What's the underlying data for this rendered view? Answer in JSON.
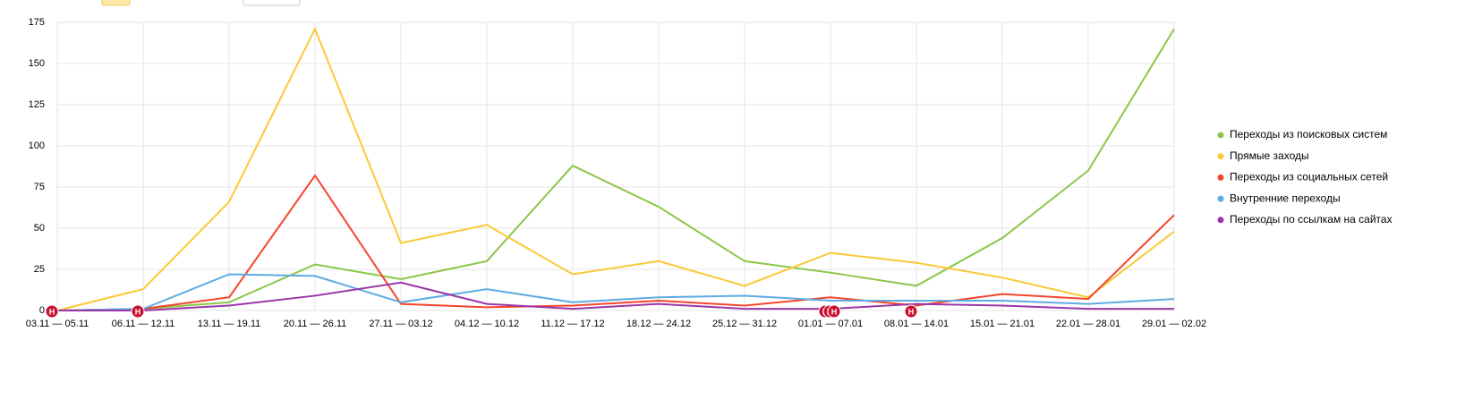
{
  "chart_data": {
    "type": "line",
    "categories": [
      "03.11 — 05.11",
      "06.11 — 12.11",
      "13.11 — 19.11",
      "20.11 — 26.11",
      "27.11 — 03.12",
      "04.12 — 10.12",
      "11.12 — 17.12",
      "18.12 — 24.12",
      "25.12 — 31.12",
      "01.01 — 07.01",
      "08.01 — 14.01",
      "15.01 — 21.01",
      "22.01 — 28.01",
      "29.01 — 02.02"
    ],
    "series": [
      {
        "name": "Переходы из поисковых систем",
        "color": "#8cc548",
        "values": [
          0,
          1,
          5,
          28,
          19,
          30,
          88,
          63,
          30,
          23,
          15,
          44,
          85,
          171
        ]
      },
      {
        "name": "Прямые заходы",
        "color": "#fcc836",
        "values": [
          0,
          13,
          66,
          171,
          41,
          52,
          22,
          30,
          15,
          35,
          29,
          20,
          8,
          48
        ]
      },
      {
        "name": "Переходы из социальных сетей",
        "color": "#f5452c",
        "values": [
          0,
          1,
          8,
          82,
          4,
          2,
          3,
          6,
          3,
          8,
          3,
          10,
          7,
          58
        ]
      },
      {
        "name": "Внутренние переходы",
        "color": "#5eabe3",
        "values": [
          0,
          1,
          22,
          21,
          5,
          13,
          5,
          8,
          9,
          6,
          6,
          6,
          4,
          7
        ]
      },
      {
        "name": "Переходы по ссылкам на сайтах",
        "color": "#9b36a8",
        "values": [
          0,
          0,
          3,
          9,
          17,
          4,
          1,
          4,
          1,
          1,
          4,
          3,
          1,
          1
        ]
      }
    ],
    "ylim": [
      0,
      175
    ],
    "yticks": [
      0,
      25,
      50,
      75,
      100,
      125,
      150,
      175
    ],
    "grid": true,
    "legend": "right",
    "annotations": [
      {
        "x": "03.11 — 05.11",
        "label": "Н"
      },
      {
        "x": "06.11 — 12.11",
        "label": "Н"
      },
      {
        "x": "01.01 — 07.01",
        "label": "Н"
      },
      {
        "x": "01.01 — 07.01",
        "label": "Н"
      },
      {
        "x": "01.01 — 07.01",
        "label": "Н"
      },
      {
        "x": "08.01 — 14.01",
        "label": "Н"
      }
    ]
  }
}
